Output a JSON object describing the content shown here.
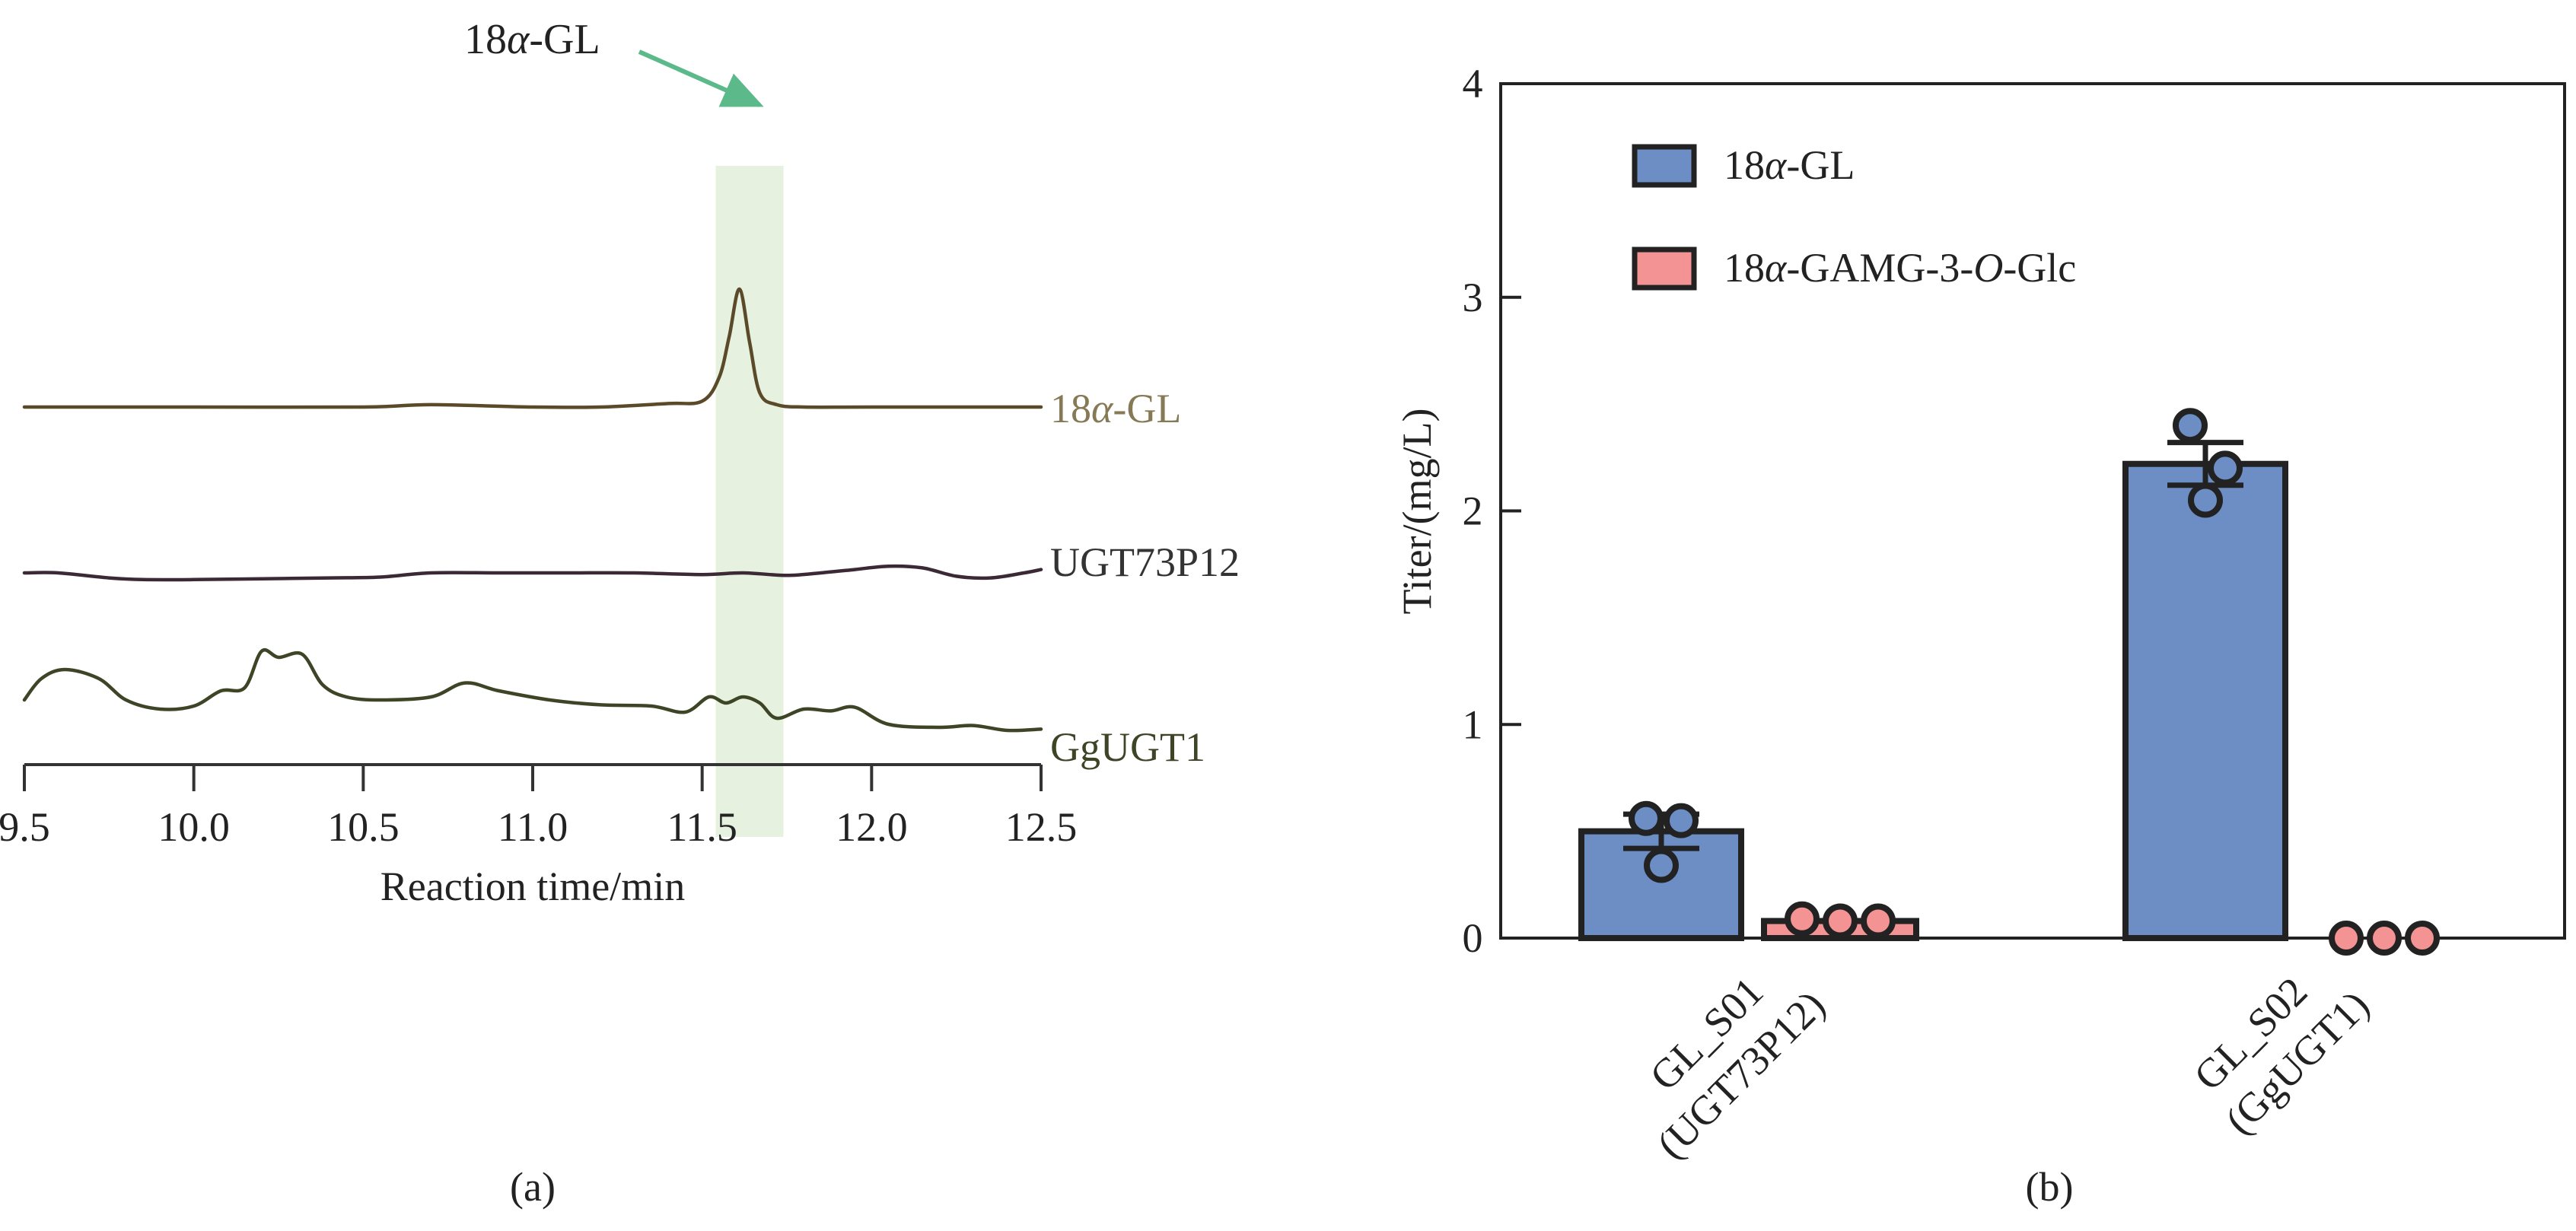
{
  "panel_a": {
    "panel_label": "(a)",
    "arrow_label_prefix": "18",
    "arrow_label_greek": "α",
    "arrow_label_suffix": "-GL",
    "arrow_color": "#5cb98a",
    "highlight_color": "#e6f1df"
  },
  "panel_b": {
    "panel_label": "(b)"
  },
  "chart_data": [
    {
      "type": "line",
      "xlabel": "Reaction time/min",
      "ylabel": "",
      "xlim": [
        9.5,
        12.5
      ],
      "xticks": [
        "9.5",
        "10.0",
        "10.5",
        "11.0",
        "11.5",
        "12.0",
        "12.5"
      ],
      "highlight_x": [
        11.54,
        11.74
      ],
      "annotation_x": 11.62,
      "grid": false,
      "series": [
        {
          "name": "18α-GL",
          "name_prefix": "18",
          "name_greek": "α",
          "name_suffix": "-GL",
          "color": "#5a4a2a",
          "label_color": "#857a55",
          "x": [
            9.5,
            10.0,
            10.5,
            10.7,
            11.0,
            11.2,
            11.4,
            11.5,
            11.55,
            11.58,
            11.61,
            11.64,
            11.67,
            11.72,
            11.8,
            12.0,
            12.5
          ],
          "y": [
            0.0,
            0.0,
            0.0,
            0.02,
            0.0,
            0.0,
            0.03,
            0.05,
            0.25,
            0.6,
            1.0,
            0.55,
            0.12,
            0.02,
            0.0,
            0.0,
            0.0
          ]
        },
        {
          "name": "UGT73P12",
          "color": "#3b2a36",
          "label_color": "#333333",
          "x": [
            9.5,
            9.6,
            9.75,
            9.85,
            10.0,
            10.2,
            10.4,
            10.55,
            10.7,
            10.9,
            11.1,
            11.3,
            11.5,
            11.62,
            11.75,
            11.85,
            11.95,
            12.05,
            12.15,
            12.25,
            12.35,
            12.45,
            12.5
          ],
          "y": [
            0.0,
            0.0,
            -0.06,
            -0.08,
            -0.08,
            -0.07,
            -0.06,
            -0.05,
            0.0,
            0.0,
            0.0,
            0.0,
            -0.02,
            0.0,
            -0.03,
            0.0,
            0.04,
            0.08,
            0.06,
            -0.04,
            -0.06,
            0.0,
            0.04
          ]
        },
        {
          "name": "GgUGT1",
          "color": "#3d4526",
          "label_color": "#3d4526",
          "x": [
            9.5,
            9.55,
            9.62,
            9.72,
            9.8,
            9.9,
            10.0,
            10.08,
            10.15,
            10.2,
            10.25,
            10.32,
            10.38,
            10.45,
            10.55,
            10.7,
            10.8,
            10.9,
            11.05,
            11.2,
            11.35,
            11.45,
            11.52,
            11.57,
            11.62,
            11.67,
            11.72,
            11.8,
            11.88,
            11.95,
            12.05,
            12.2,
            12.3,
            12.4,
            12.5
          ],
          "y": [
            0.0,
            0.35,
            0.5,
            0.35,
            0.0,
            -0.15,
            -0.1,
            0.15,
            0.2,
            0.8,
            0.7,
            0.75,
            0.25,
            0.05,
            0.0,
            0.05,
            0.28,
            0.15,
            0.0,
            -0.08,
            -0.1,
            -0.2,
            0.05,
            -0.05,
            0.05,
            -0.05,
            -0.3,
            -0.15,
            -0.18,
            -0.12,
            -0.4,
            -0.45,
            -0.42,
            -0.5,
            -0.48
          ]
        }
      ]
    },
    {
      "type": "bar",
      "categories": [
        "GL_S01\n(UGT73P12)",
        "GL_S02\n(GgUGT1)"
      ],
      "category_line1": [
        "GL_S01",
        "GL_S02"
      ],
      "category_line2": [
        "(UGT73P12)",
        "(GgUGT1)"
      ],
      "ylabel": "Titer/(mg/L)",
      "xlabel": "",
      "ylim": [
        0,
        4
      ],
      "yticks": [
        "0",
        "1",
        "2",
        "3",
        "4"
      ],
      "legend_position": "top-left",
      "grid": false,
      "series": [
        {
          "name": "18α-GL",
          "legend_prefix": "18",
          "legend_greek": "α",
          "legend_mid": "-GL",
          "legend_italic": "",
          "legend_suffix": "",
          "color": "#6c8ec5",
          "values": [
            0.5,
            2.22
          ],
          "error": [
            0.08,
            0.1
          ],
          "points": [
            [
              0.56,
              0.55,
              0.34
            ],
            [
              2.4,
              2.2,
              2.05
            ]
          ]
        },
        {
          "name": "18α-GAMG-3-O-Glc",
          "legend_prefix": "18",
          "legend_greek": "α",
          "legend_mid": "-GAMG-3-",
          "legend_italic": "O",
          "legend_suffix": "-Glc",
          "color": "#f39393",
          "values": [
            0.08,
            0.0
          ],
          "error": [
            0.01,
            0.0
          ],
          "points": [
            [
              0.09,
              0.08,
              0.08
            ],
            [
              0.0,
              0.0,
              0.0
            ]
          ]
        }
      ]
    }
  ]
}
